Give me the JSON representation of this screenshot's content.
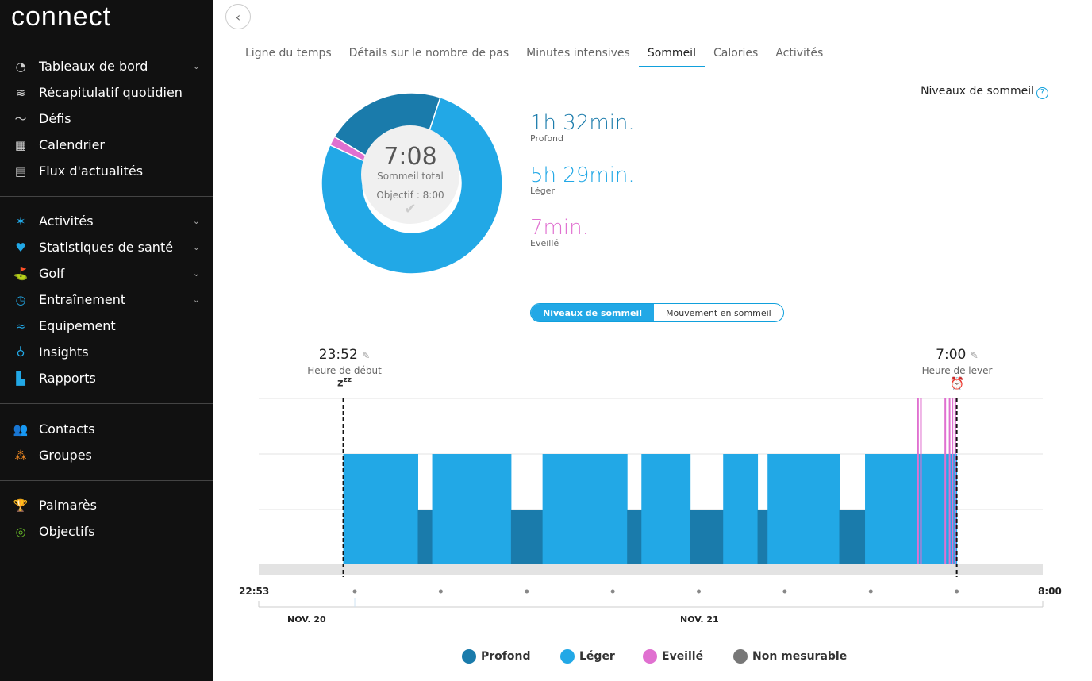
{
  "app": {
    "logo": "connect"
  },
  "sidebar": {
    "groups": [
      [
        {
          "label": "Tableaux de bord",
          "icon": "gauge-icon",
          "glyph": "◔",
          "chevron": true,
          "color": "#ccc"
        },
        {
          "label": "Récapitulatif quotidien",
          "icon": "layers-icon",
          "glyph": "≋",
          "color": "#ccc"
        },
        {
          "label": "Défis",
          "icon": "challenge-icon",
          "glyph": "〜",
          "color": "#ccc"
        },
        {
          "label": "Calendrier",
          "icon": "calendar-icon",
          "glyph": "▦",
          "color": "#ccc"
        },
        {
          "label": "Flux d'actualités",
          "icon": "newsfeed-icon",
          "glyph": "▤",
          "color": "#ccc"
        }
      ],
      [
        {
          "label": "Activités",
          "icon": "activity-person-icon",
          "glyph": "✶",
          "chevron": true,
          "color": "#22a8e6"
        },
        {
          "label": "Statistiques de santé",
          "icon": "heart-icon",
          "glyph": "♥",
          "chevron": true,
          "color": "#22a8e6"
        },
        {
          "label": "Golf",
          "icon": "golf-icon",
          "glyph": "⛳",
          "chevron": true,
          "color": "#22a8e6"
        },
        {
          "label": "Entraînement",
          "icon": "stopwatch-icon",
          "glyph": "◷",
          "chevron": true,
          "color": "#22a8e6"
        },
        {
          "label": "Equipement",
          "icon": "shoe-icon",
          "glyph": "≈",
          "color": "#22a8e6"
        },
        {
          "label": "Insights",
          "icon": "lightbulb-icon",
          "glyph": "♁",
          "color": "#22a8e6"
        },
        {
          "label": "Rapports",
          "icon": "bar-chart-icon",
          "glyph": "▙",
          "color": "#22a8e6"
        }
      ],
      [
        {
          "label": "Contacts",
          "icon": "contacts-icon",
          "glyph": "👥",
          "color": "#f08a24"
        },
        {
          "label": "Groupes",
          "icon": "groups-icon",
          "glyph": "⁂",
          "color": "#f08a24"
        }
      ],
      [
        {
          "label": "Palmarès",
          "icon": "trophy-icon",
          "glyph": "🏆",
          "color": "#6bbf2a"
        },
        {
          "label": "Objectifs",
          "icon": "target-icon",
          "glyph": "◎",
          "color": "#6bbf2a"
        }
      ]
    ]
  },
  "tabs": [
    "Ligne du temps",
    "Détails sur le nombre de pas",
    "Minutes intensives",
    "Sommeil",
    "Calories",
    "Activités"
  ],
  "active_tab": "Sommeil",
  "levels_link": "Niveaux de sommeil",
  "summary": {
    "total": "7:08",
    "total_label": "Sommeil total",
    "goal": "Objectif : 8:00",
    "stats": [
      {
        "value": "1h 32min.",
        "label": "Profond",
        "color": "#1a7bab"
      },
      {
        "value": "5h 29min.",
        "label": "Léger",
        "color": "#22a8e6"
      },
      {
        "value": "7min.",
        "label": "Eveillé",
        "color": "#e070d0"
      }
    ]
  },
  "toggle": {
    "left": "Niveaux de sommeil",
    "right": "Mouvement en sommeil"
  },
  "start": {
    "time": "23:52",
    "label": "Heure de début"
  },
  "end": {
    "time": "7:00",
    "label": "Heure de lever"
  },
  "axis": {
    "left": "22:53",
    "right": "8:00",
    "date1": "NOV. 20",
    "date2": "NOV. 21"
  },
  "legend": [
    {
      "label": "Profond",
      "color": "#1a7bab"
    },
    {
      "label": "Léger",
      "color": "#22a8e6"
    },
    {
      "label": "Eveillé",
      "color": "#e070d0"
    },
    {
      "label": "Non mesurable",
      "color": "#777"
    }
  ],
  "chart_data": {
    "type": "area",
    "x_range": [
      "22:53",
      "08:00"
    ],
    "levels": [
      "Profond",
      "Léger",
      "Eveillé"
    ],
    "donut": [
      {
        "name": "Profond",
        "minutes": 92
      },
      {
        "name": "Léger",
        "minutes": 329
      },
      {
        "name": "Eveillé",
        "minutes": 7
      }
    ],
    "segments": [
      {
        "start": "23:52",
        "end": "00:44",
        "level": "Léger"
      },
      {
        "start": "00:44",
        "end": "00:54",
        "level": "Profond"
      },
      {
        "start": "00:54",
        "end": "01:49",
        "level": "Léger"
      },
      {
        "start": "01:49",
        "end": "02:11",
        "level": "Profond"
      },
      {
        "start": "02:11",
        "end": "03:10",
        "level": "Léger"
      },
      {
        "start": "03:10",
        "end": "03:20",
        "level": "Profond"
      },
      {
        "start": "03:20",
        "end": "03:54",
        "level": "Léger"
      },
      {
        "start": "03:54",
        "end": "04:17",
        "level": "Profond"
      },
      {
        "start": "04:17",
        "end": "04:41",
        "level": "Léger"
      },
      {
        "start": "04:41",
        "end": "04:48",
        "level": "Profond"
      },
      {
        "start": "04:48",
        "end": "05:38",
        "level": "Léger"
      },
      {
        "start": "05:38",
        "end": "05:56",
        "level": "Profond"
      },
      {
        "start": "05:56",
        "end": "07:00",
        "level": "Léger"
      }
    ],
    "awake": [
      "06:33",
      "06:35",
      "06:52",
      "06:55",
      "06:57",
      "06:59"
    ]
  }
}
